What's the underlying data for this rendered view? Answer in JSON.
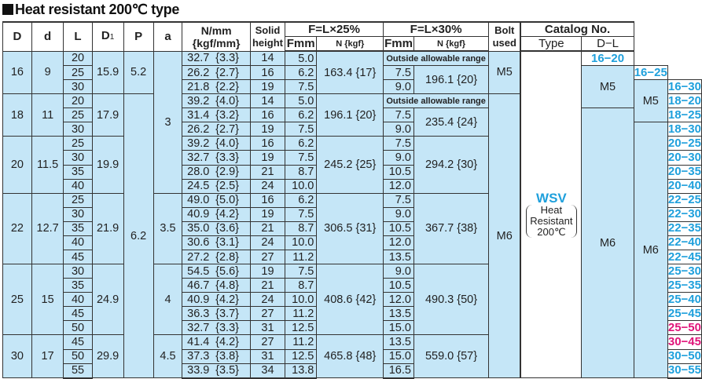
{
  "title": "Heat resistant 200℃ type",
  "header": {
    "D": "D",
    "d": "d",
    "L": "L",
    "D1": "D",
    "D1_sub": "1",
    "P": "P",
    "a": "a",
    "spring_line1": "N/mm",
    "spring_line2": "{kgf/mm}",
    "solid_line1": "Solid",
    "solid_line2": "height",
    "f25": "F=L×25%",
    "f30": "F=L×30%",
    "fmm": "Fmm",
    "n_kgf": "N {kgf}",
    "bolt_line1": "Bolt",
    "bolt_line2": "used",
    "catalog": "Catalog No.",
    "type": "Type",
    "dl": "D−L"
  },
  "outside_label": "Outside allowable range",
  "type_cell": {
    "code": "WSV",
    "line1": "Heat",
    "line2": "Resistant",
    "line3": "200℃"
  },
  "colors": {
    "row_fill": "#c5e6f7",
    "catalog_blue": "#1fa0dc",
    "catalog_pink": "#e0157a"
  },
  "P": [
    {
      "value": "5.2",
      "group_count": 1
    },
    {
      "value": "6.2",
      "group_count": 5
    }
  ],
  "a": [
    {
      "value": "3",
      "group_count": 3
    },
    {
      "value": "3.5",
      "group_count": 1
    },
    {
      "value": "4",
      "group_count": 1
    },
    {
      "value": "4.5",
      "group_count": 1
    }
  ],
  "bolt": [
    {
      "value": "M5",
      "group_count": 1
    },
    {
      "value": "M6",
      "group_count": 5
    }
  ],
  "groups": [
    {
      "D": "16",
      "d": "9",
      "D1": "15.9",
      "n25": "163.4 {17}",
      "n30": "196.1 {20}",
      "rows": [
        {
          "L": "20",
          "k": "32.7",
          "kgf": "{3.3}",
          "solid": "14",
          "f25": "5.0",
          "f30": null,
          "cat": "16−20",
          "pink": false
        },
        {
          "L": "25",
          "k": "26.2",
          "kgf": "{2.7}",
          "solid": "16",
          "f25": "6.2",
          "f30": "7.5",
          "cat": "16−25",
          "pink": false
        },
        {
          "L": "30",
          "k": "21.8",
          "kgf": "{2.2}",
          "solid": "19",
          "f25": "7.5",
          "f30": "9.0",
          "cat": "16−30",
          "pink": false
        }
      ]
    },
    {
      "D": "18",
      "d": "11",
      "D1": "17.9",
      "n25": "196.1 {20}",
      "n30": "235.4 {24}",
      "rows": [
        {
          "L": "20",
          "k": "39.2",
          "kgf": "{4.0}",
          "solid": "14",
          "f25": "5.0",
          "f30": null,
          "cat": "18−20",
          "pink": false
        },
        {
          "L": "25",
          "k": "31.4",
          "kgf": "{3.2}",
          "solid": "16",
          "f25": "6.2",
          "f30": "7.5",
          "cat": "18−25",
          "pink": false
        },
        {
          "L": "30",
          "k": "26.2",
          "kgf": "{2.7}",
          "solid": "19",
          "f25": "7.5",
          "f30": "9.0",
          "cat": "18−30",
          "pink": false
        }
      ]
    },
    {
      "D": "20",
      "d": "11.5",
      "D1": "19.9",
      "n25": "245.2 {25}",
      "n30": "294.2 {30}",
      "rows": [
        {
          "L": "25",
          "k": "39.2",
          "kgf": "{4.0}",
          "solid": "16",
          "f25": "6.2",
          "f30": "7.5",
          "cat": "20−25",
          "pink": false
        },
        {
          "L": "30",
          "k": "32.7",
          "kgf": "{3.3}",
          "solid": "19",
          "f25": "7.5",
          "f30": "9.0",
          "cat": "20−30",
          "pink": false
        },
        {
          "L": "35",
          "k": "28.0",
          "kgf": "{2.9}",
          "solid": "21",
          "f25": "8.7",
          "f30": "10.5",
          "cat": "20−35",
          "pink": false
        },
        {
          "L": "40",
          "k": "24.5",
          "kgf": "{2.5}",
          "solid": "24",
          "f25": "10.0",
          "f30": "12.0",
          "cat": "20−40",
          "pink": false
        }
      ]
    },
    {
      "D": "22",
      "d": "12.7",
      "D1": "21.9",
      "n25": "306.5 {31}",
      "n30": "367.7 {38}",
      "rows": [
        {
          "L": "25",
          "k": "49.0",
          "kgf": "{5.0}",
          "solid": "16",
          "f25": "6.2",
          "f30": "7.5",
          "cat": "22−25",
          "pink": false
        },
        {
          "L": "30",
          "k": "40.9",
          "kgf": "{4.2}",
          "solid": "19",
          "f25": "7.5",
          "f30": "9.0",
          "cat": "22−30",
          "pink": false
        },
        {
          "L": "35",
          "k": "35.0",
          "kgf": "{3.6}",
          "solid": "21",
          "f25": "8.7",
          "f30": "10.5",
          "cat": "22−35",
          "pink": false
        },
        {
          "L": "40",
          "k": "30.6",
          "kgf": "{3.1}",
          "solid": "24",
          "f25": "10.0",
          "f30": "12.0",
          "cat": "22−40",
          "pink": false
        },
        {
          "L": "45",
          "k": "27.2",
          "kgf": "{2.8}",
          "solid": "27",
          "f25": "11.2",
          "f30": "13.5",
          "cat": "22−45",
          "pink": false
        }
      ]
    },
    {
      "D": "25",
      "d": "15",
      "D1": "24.9",
      "n25": "408.6 {42}",
      "n30": "490.3 {50}",
      "rows": [
        {
          "L": "30",
          "k": "54.5",
          "kgf": "{5.6}",
          "solid": "19",
          "f25": "7.5",
          "f30": "9.0",
          "cat": "25−30",
          "pink": false
        },
        {
          "L": "35",
          "k": "46.7",
          "kgf": "{4.8}",
          "solid": "21",
          "f25": "8.7",
          "f30": "10.5",
          "cat": "25−35",
          "pink": false
        },
        {
          "L": "40",
          "k": "40.9",
          "kgf": "{4.2}",
          "solid": "24",
          "f25": "10.0",
          "f30": "12.0",
          "cat": "25−40",
          "pink": false
        },
        {
          "L": "45",
          "k": "36.3",
          "kgf": "{3.7}",
          "solid": "27",
          "f25": "11.2",
          "f30": "13.5",
          "cat": "25−45",
          "pink": false
        },
        {
          "L": "50",
          "k": "32.7",
          "kgf": "{3.3}",
          "solid": "31",
          "f25": "12.5",
          "f30": "15.0",
          "cat": "25−50",
          "pink": true
        }
      ]
    },
    {
      "D": "30",
      "d": "17",
      "D1": "29.9",
      "n25": "465.8 {48}",
      "n30": "559.0 {57}",
      "rows": [
        {
          "L": "45",
          "k": "41.4",
          "kgf": "{4.2}",
          "solid": "27",
          "f25": "11.2",
          "f30": "13.5",
          "cat": "30−45",
          "pink": true
        },
        {
          "L": "50",
          "k": "37.3",
          "kgf": "{3.8}",
          "solid": "31",
          "f25": "12.5",
          "f30": "15.0",
          "cat": "30−50",
          "pink": false
        },
        {
          "L": "55",
          "k": "33.9",
          "kgf": "{3.5}",
          "solid": "34",
          "f25": "13.8",
          "f30": "16.5",
          "cat": "30−55",
          "pink": false
        }
      ]
    }
  ]
}
